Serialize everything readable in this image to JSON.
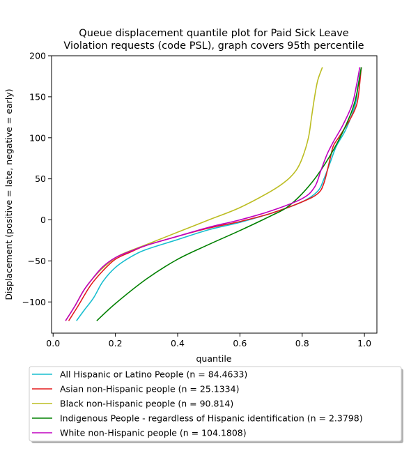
{
  "chart_data": {
    "type": "line",
    "title_lines": [
      "Queue displacement quantile plot for Paid Sick Leave",
      "Violation  requests (code PSL), graph covers 95th percentile"
    ],
    "xlabel": "quantile",
    "ylabel": "Displacement (positive = late, negative = early)",
    "xlim": [
      -0.005,
      1.04
    ],
    "ylim": [
      -138,
      200
    ],
    "xticks": [
      0.0,
      0.2,
      0.4,
      0.6,
      0.8,
      1.0
    ],
    "xtick_labels": [
      "0.0",
      "0.2",
      "0.4",
      "0.6",
      "0.8",
      "1.0"
    ],
    "yticks": [
      -100,
      -50,
      0,
      50,
      100,
      150,
      200
    ],
    "ytick_labels": [
      "−100",
      "−50",
      "0",
      "50",
      "100",
      "150",
      "200"
    ],
    "grid": false,
    "legend_position": "bottom-outside",
    "series": [
      {
        "name": "All Hispanic or Latino People (n = 84.4633)",
        "color": "#17becf",
        "points": [
          [
            0.075,
            -123
          ],
          [
            0.1,
            -110
          ],
          [
            0.13,
            -95
          ],
          [
            0.16,
            -75
          ],
          [
            0.2,
            -58
          ],
          [
            0.25,
            -45
          ],
          [
            0.3,
            -36
          ],
          [
            0.4,
            -24
          ],
          [
            0.5,
            -12
          ],
          [
            0.6,
            -3
          ],
          [
            0.7,
            8
          ],
          [
            0.8,
            22
          ],
          [
            0.85,
            35
          ],
          [
            0.87,
            50
          ],
          [
            0.89,
            70
          ],
          [
            0.91,
            90
          ],
          [
            0.94,
            110
          ],
          [
            0.97,
            140
          ],
          [
            0.98,
            165
          ],
          [
            0.99,
            186
          ]
        ]
      },
      {
        "name": "Asian non-Hispanic people (n = 25.1334)",
        "color": "#e31a1c",
        "points": [
          [
            0.05,
            -123
          ],
          [
            0.08,
            -105
          ],
          [
            0.12,
            -80
          ],
          [
            0.16,
            -62
          ],
          [
            0.2,
            -48
          ],
          [
            0.25,
            -39
          ],
          [
            0.3,
            -31
          ],
          [
            0.4,
            -20
          ],
          [
            0.5,
            -10
          ],
          [
            0.6,
            -2
          ],
          [
            0.7,
            8
          ],
          [
            0.8,
            22
          ],
          [
            0.85,
            32
          ],
          [
            0.87,
            45
          ],
          [
            0.89,
            75
          ],
          [
            0.9,
            90
          ],
          [
            0.92,
            102
          ],
          [
            0.95,
            120
          ],
          [
            0.97,
            135
          ],
          [
            0.98,
            150
          ],
          [
            0.99,
            186
          ]
        ]
      },
      {
        "name": "Black non-Hispanic people (n = 90.814)",
        "color": "#bcbd22",
        "points": [
          [
            0.04,
            -123
          ],
          [
            0.07,
            -105
          ],
          [
            0.1,
            -85
          ],
          [
            0.14,
            -66
          ],
          [
            0.18,
            -52
          ],
          [
            0.22,
            -42
          ],
          [
            0.3,
            -30
          ],
          [
            0.4,
            -15
          ],
          [
            0.5,
            0
          ],
          [
            0.6,
            15
          ],
          [
            0.7,
            35
          ],
          [
            0.75,
            48
          ],
          [
            0.78,
            60
          ],
          [
            0.8,
            75
          ],
          [
            0.82,
            100
          ],
          [
            0.83,
            125
          ],
          [
            0.84,
            150
          ],
          [
            0.85,
            170
          ],
          [
            0.865,
            186
          ]
        ]
      },
      {
        "name": "Indigenous People - regardless of Hispanic identification (n = 2.3798)",
        "color": "#008000",
        "points": [
          [
            0.14,
            -123
          ],
          [
            0.2,
            -102
          ],
          [
            0.3,
            -72
          ],
          [
            0.4,
            -48
          ],
          [
            0.5,
            -30
          ],
          [
            0.6,
            -13
          ],
          [
            0.7,
            5
          ],
          [
            0.75,
            15
          ],
          [
            0.8,
            32
          ],
          [
            0.85,
            55
          ],
          [
            0.9,
            85
          ],
          [
            0.94,
            115
          ],
          [
            0.97,
            145
          ],
          [
            0.99,
            186
          ]
        ]
      },
      {
        "name": "White non-Hispanic people (n = 104.1808)",
        "color": "#c000c0",
        "points": [
          [
            0.04,
            -123
          ],
          [
            0.07,
            -105
          ],
          [
            0.1,
            -85
          ],
          [
            0.13,
            -70
          ],
          [
            0.16,
            -57
          ],
          [
            0.2,
            -46
          ],
          [
            0.25,
            -38
          ],
          [
            0.3,
            -31
          ],
          [
            0.4,
            -20
          ],
          [
            0.5,
            -9
          ],
          [
            0.6,
            0
          ],
          [
            0.7,
            11
          ],
          [
            0.8,
            26
          ],
          [
            0.84,
            40
          ],
          [
            0.86,
            60
          ],
          [
            0.88,
            80
          ],
          [
            0.9,
            95
          ],
          [
            0.93,
            115
          ],
          [
            0.96,
            140
          ],
          [
            0.975,
            165
          ],
          [
            0.985,
            186
          ]
        ]
      }
    ]
  }
}
